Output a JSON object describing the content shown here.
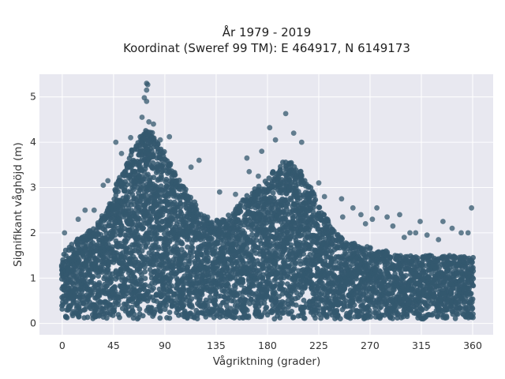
{
  "chart_data": {
    "type": "scatter",
    "title_line1": "År 1979 - 2019",
    "title_line2": "Koordinat (Sweref 99 TM): E 464917, N 6149173",
    "xlabel": "Vågriktning (grader)",
    "ylabel": "Signifikant våghöjd (m)",
    "xlim": [
      -20,
      378
    ],
    "ylim": [
      -0.25,
      5.5
    ],
    "xticks": [
      0,
      45,
      90,
      135,
      180,
      225,
      270,
      315,
      360
    ],
    "yticks": [
      0,
      1,
      2,
      3,
      4,
      5
    ],
    "grid": true,
    "legend": "none",
    "colors": {
      "marker": "#34586e",
      "plot_bg": "#e8e8f0",
      "grid": "#ffffff"
    },
    "envelope": {
      "x": [
        0,
        5,
        10,
        15,
        20,
        25,
        30,
        35,
        40,
        45,
        50,
        55,
        60,
        65,
        70,
        75,
        80,
        85,
        90,
        95,
        100,
        105,
        110,
        115,
        120,
        125,
        130,
        135,
        140,
        145,
        150,
        155,
        160,
        165,
        170,
        175,
        180,
        185,
        190,
        195,
        200,
        205,
        210,
        215,
        220,
        225,
        230,
        235,
        240,
        245,
        250,
        255,
        260,
        265,
        270,
        275,
        280,
        285,
        290,
        295,
        300,
        305,
        310,
        315,
        320,
        325,
        330,
        335,
        340,
        345,
        350,
        355,
        360
      ],
      "y_max": [
        1.5,
        1.7,
        1.8,
        1.9,
        2.0,
        2.1,
        2.2,
        2.4,
        2.6,
        2.9,
        3.2,
        3.5,
        3.8,
        4.0,
        4.2,
        4.3,
        4.2,
        4.0,
        3.8,
        3.5,
        3.3,
        3.1,
        2.9,
        2.7,
        2.5,
        2.4,
        2.3,
        2.3,
        2.3,
        2.4,
        2.5,
        2.6,
        2.8,
        2.9,
        3.0,
        3.1,
        3.2,
        3.4,
        3.5,
        3.6,
        3.6,
        3.5,
        3.3,
        3.1,
        2.9,
        2.6,
        2.4,
        2.2,
        2.0,
        1.9,
        1.8,
        1.8,
        1.7,
        1.7,
        1.7,
        1.6,
        1.6,
        1.6,
        1.5,
        1.5,
        1.5,
        1.5,
        1.5,
        1.5,
        1.5,
        1.5,
        1.5,
        1.5,
        1.5,
        1.5,
        1.5,
        1.5,
        1.5
      ],
      "y_min": 0.1
    },
    "outliers": [
      {
        "x": 74,
        "y": 5.3
      },
      {
        "x": 75,
        "y": 5.27
      },
      {
        "x": 74,
        "y": 5.15
      },
      {
        "x": 72,
        "y": 4.98
      },
      {
        "x": 74,
        "y": 4.9
      },
      {
        "x": 70,
        "y": 4.55
      },
      {
        "x": 76,
        "y": 4.45
      },
      {
        "x": 80,
        "y": 4.4
      },
      {
        "x": 86,
        "y": 4.05
      },
      {
        "x": 94,
        "y": 4.12
      },
      {
        "x": 47,
        "y": 4.0
      },
      {
        "x": 52,
        "y": 3.75
      },
      {
        "x": 60,
        "y": 4.1
      },
      {
        "x": 120,
        "y": 3.6
      },
      {
        "x": 113,
        "y": 3.45
      },
      {
        "x": 196,
        "y": 4.63
      },
      {
        "x": 182,
        "y": 4.32
      },
      {
        "x": 203,
        "y": 4.2
      },
      {
        "x": 210,
        "y": 4.0
      },
      {
        "x": 187,
        "y": 4.05
      },
      {
        "x": 175,
        "y": 3.8
      },
      {
        "x": 162,
        "y": 3.65
      },
      {
        "x": 164,
        "y": 3.35
      },
      {
        "x": 172,
        "y": 3.25
      },
      {
        "x": 138,
        "y": 2.9
      },
      {
        "x": 152,
        "y": 2.85
      },
      {
        "x": 225,
        "y": 3.1
      },
      {
        "x": 230,
        "y": 2.8
      },
      {
        "x": 245,
        "y": 2.75
      },
      {
        "x": 255,
        "y": 2.55
      },
      {
        "x": 262,
        "y": 2.4
      },
      {
        "x": 272,
        "y": 2.3
      },
      {
        "x": 276,
        "y": 2.55
      },
      {
        "x": 285,
        "y": 2.35
      },
      {
        "x": 296,
        "y": 2.4
      },
      {
        "x": 305,
        "y": 2.0
      },
      {
        "x": 310,
        "y": 2.0
      },
      {
        "x": 314,
        "y": 2.25
      },
      {
        "x": 320,
        "y": 1.95
      },
      {
        "x": 334,
        "y": 2.25
      },
      {
        "x": 342,
        "y": 2.1
      },
      {
        "x": 350,
        "y": 2.0
      },
      {
        "x": 356,
        "y": 2.0
      },
      {
        "x": 359,
        "y": 2.55
      },
      {
        "x": 2,
        "y": 2.0
      },
      {
        "x": 14,
        "y": 2.3
      },
      {
        "x": 20,
        "y": 2.5
      },
      {
        "x": 28,
        "y": 2.5
      },
      {
        "x": 36,
        "y": 3.05
      },
      {
        "x": 40,
        "y": 3.15
      },
      {
        "x": 246,
        "y": 2.35
      },
      {
        "x": 266,
        "y": 2.2
      },
      {
        "x": 290,
        "y": 2.15
      },
      {
        "x": 300,
        "y": 1.9
      },
      {
        "x": 330,
        "y": 1.85
      }
    ]
  }
}
